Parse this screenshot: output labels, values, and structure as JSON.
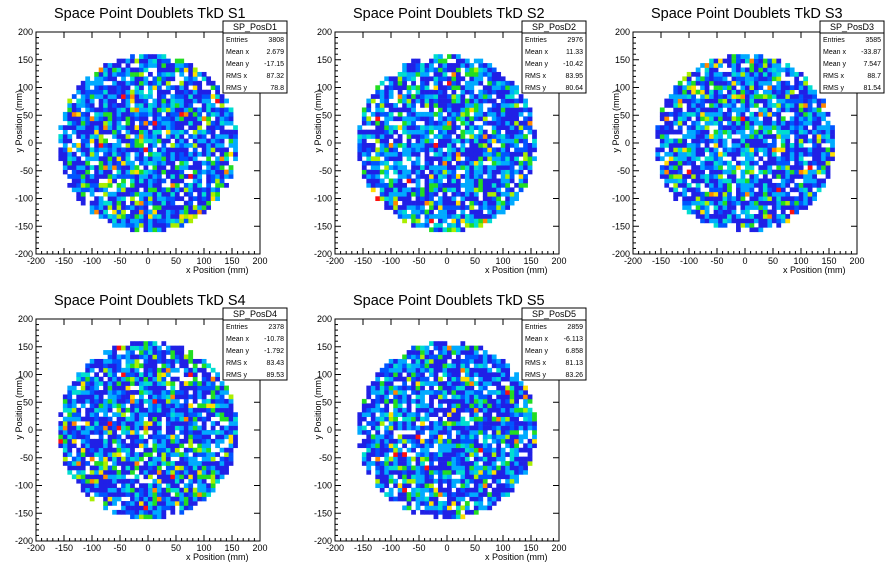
{
  "colors": {
    "palette": [
      "#ffffff",
      "#2020e6",
      "#0055ff",
      "#00aaff",
      "#00ddd0",
      "#22dd22",
      "#aaee00",
      "#ffdd00",
      "#ff8800",
      "#ff1010"
    ]
  },
  "chart_data": [
    {
      "type": "heatmap",
      "title": "Space Point Doublets TkD S1",
      "xlabel": "x Position (mm)",
      "ylabel": "y Position (mm)",
      "xlim": [
        -200,
        200
      ],
      "ylim": [
        -200,
        200
      ],
      "xticks": [
        -200,
        -150,
        -100,
        -50,
        0,
        50,
        100,
        150,
        200
      ],
      "yticks": [
        -200,
        -150,
        -100,
        -50,
        0,
        50,
        100,
        150,
        200
      ],
      "grid": false,
      "stats": {
        "name": "SP_PosD1",
        "rows": [
          [
            "Entries",
            "3808"
          ],
          [
            "Mean x",
            "2.679"
          ],
          [
            "Mean y",
            "-17.15"
          ],
          [
            "RMS x",
            "87.32"
          ],
          [
            "RMS y",
            "78.8"
          ]
        ]
      },
      "footprint_radius_mm": 160,
      "seed": 11
    },
    {
      "type": "heatmap",
      "title": "Space Point Doublets TkD S2",
      "xlabel": "x Position (mm)",
      "ylabel": "y Position (mm)",
      "xlim": [
        -200,
        200
      ],
      "ylim": [
        -200,
        200
      ],
      "xticks": [
        -200,
        -150,
        -100,
        -50,
        0,
        50,
        100,
        150,
        200
      ],
      "yticks": [
        -200,
        -150,
        -100,
        -50,
        0,
        50,
        100,
        150,
        200
      ],
      "grid": false,
      "stats": {
        "name": "SP_PosD2",
        "rows": [
          [
            "Entries",
            "2976"
          ],
          [
            "Mean x",
            "11.33"
          ],
          [
            "Mean y",
            "-10.42"
          ],
          [
            "RMS x",
            "83.95"
          ],
          [
            "RMS y",
            "80.64"
          ]
        ]
      },
      "footprint_radius_mm": 160,
      "seed": 23
    },
    {
      "type": "heatmap",
      "title": "Space Point Doublets TkD S3",
      "xlabel": "x Position (mm)",
      "ylabel": "y Position (mm)",
      "xlim": [
        -200,
        200
      ],
      "ylim": [
        -200,
        200
      ],
      "xticks": [
        -200,
        -150,
        -100,
        -50,
        0,
        50,
        100,
        150,
        200
      ],
      "yticks": [
        -200,
        -150,
        -100,
        -50,
        0,
        50,
        100,
        150,
        200
      ],
      "grid": false,
      "stats": {
        "name": "SP_PosD3",
        "rows": [
          [
            "Entries",
            "3585"
          ],
          [
            "Mean x",
            "-33.87"
          ],
          [
            "Mean y",
            "7.547"
          ],
          [
            "RMS x",
            "88.7"
          ],
          [
            "RMS y",
            "81.54"
          ]
        ]
      },
      "footprint_radius_mm": 160,
      "seed": 37
    },
    {
      "type": "heatmap",
      "title": "Space Point Doublets TkD S4",
      "xlabel": "x Position (mm)",
      "ylabel": "y Position (mm)",
      "xlim": [
        -200,
        200
      ],
      "ylim": [
        -200,
        200
      ],
      "xticks": [
        -200,
        -150,
        -100,
        -50,
        0,
        50,
        100,
        150,
        200
      ],
      "yticks": [
        -200,
        -150,
        -100,
        -50,
        0,
        50,
        100,
        150,
        200
      ],
      "grid": false,
      "stats": {
        "name": "SP_PosD4",
        "rows": [
          [
            "Entries",
            "2378"
          ],
          [
            "Mean x",
            "-10.78"
          ],
          [
            "Mean y",
            "-1.792"
          ],
          [
            "RMS x",
            "83.43"
          ],
          [
            "RMS y",
            "89.53"
          ]
        ]
      },
      "footprint_radius_mm": 160,
      "seed": 41
    },
    {
      "type": "heatmap",
      "title": "Space Point Doublets TkD S5",
      "xlabel": "x Position (mm)",
      "ylabel": "y Position (mm)",
      "xlim": [
        -200,
        200
      ],
      "ylim": [
        -200,
        200
      ],
      "xticks": [
        -200,
        -150,
        -100,
        -50,
        0,
        50,
        100,
        150,
        200
      ],
      "yticks": [
        -200,
        -150,
        -100,
        -50,
        0,
        50,
        100,
        150,
        200
      ],
      "grid": false,
      "stats": {
        "name": "SP_PosD5",
        "rows": [
          [
            "Entries",
            "2859"
          ],
          [
            "Mean x",
            "-6.113"
          ],
          [
            "Mean y",
            "6.858"
          ],
          [
            "RMS x",
            "81.13"
          ],
          [
            "RMS y",
            "83.26"
          ]
        ]
      },
      "footprint_radius_mm": 160,
      "seed": 53
    }
  ]
}
